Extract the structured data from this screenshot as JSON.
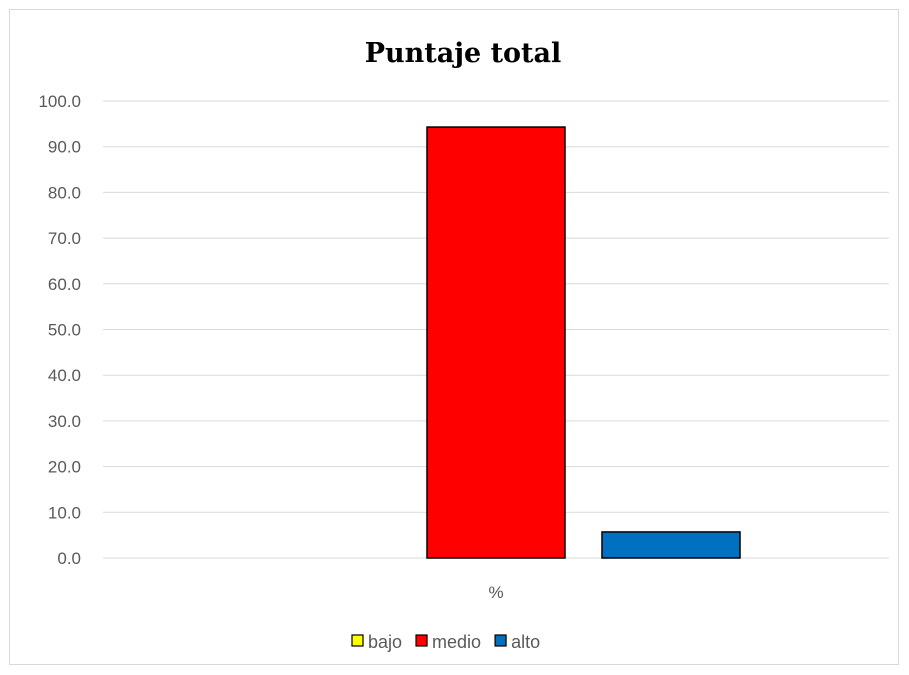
{
  "chart_data": {
    "type": "bar",
    "title": "Puntaje total",
    "categories": [
      "%"
    ],
    "series": [
      {
        "name": "bajo",
        "values": [
          0.0
        ],
        "color": "#FFFF00"
      },
      {
        "name": "medio",
        "values": [
          94.3
        ],
        "color": "#FF0000"
      },
      {
        "name": "alto",
        "values": [
          5.7
        ],
        "color": "#0070C0"
      }
    ],
    "ylim": [
      0,
      100
    ],
    "yticks": [
      "0.0",
      "10.0",
      "20.0",
      "30.0",
      "40.0",
      "50.0",
      "60.0",
      "70.0",
      "80.0",
      "90.0",
      "100.0"
    ],
    "grid": true,
    "legend": "bottom"
  }
}
